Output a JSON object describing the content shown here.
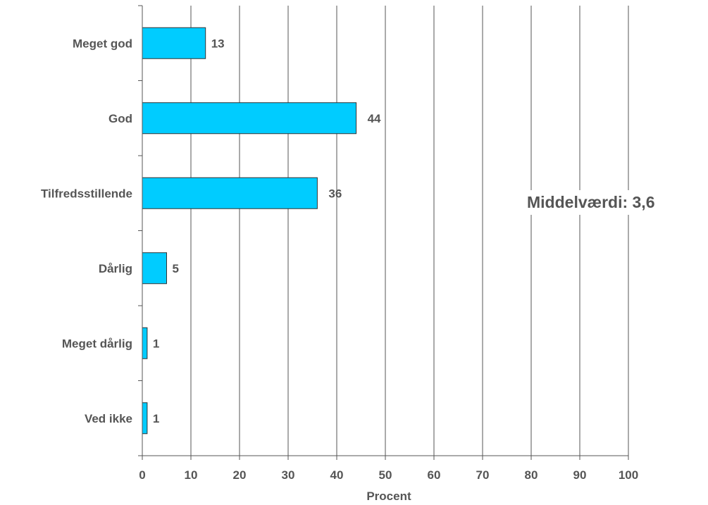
{
  "chart_data": {
    "type": "bar",
    "orientation": "horizontal",
    "categories": [
      "Meget god",
      "God",
      "Tilfredsstillende",
      "Dårlig",
      "Meget dårlig",
      "Ved ikke"
    ],
    "values": [
      13,
      44,
      36,
      5,
      1,
      1
    ],
    "data_labels": [
      "13",
      "44",
      "36",
      "5",
      "1",
      "1"
    ],
    "xlabel": "Procent",
    "xlim": [
      0,
      100
    ],
    "x_ticks": [
      "0",
      "10",
      "20",
      "30",
      "40",
      "50",
      "60",
      "70",
      "80",
      "90",
      "100"
    ],
    "grid": true,
    "annotation": "Middelværdi: 3,6",
    "colors": {
      "bar": "#00ccff",
      "bar_border": "#333333",
      "grid": "#555555",
      "text": "#555555"
    }
  }
}
